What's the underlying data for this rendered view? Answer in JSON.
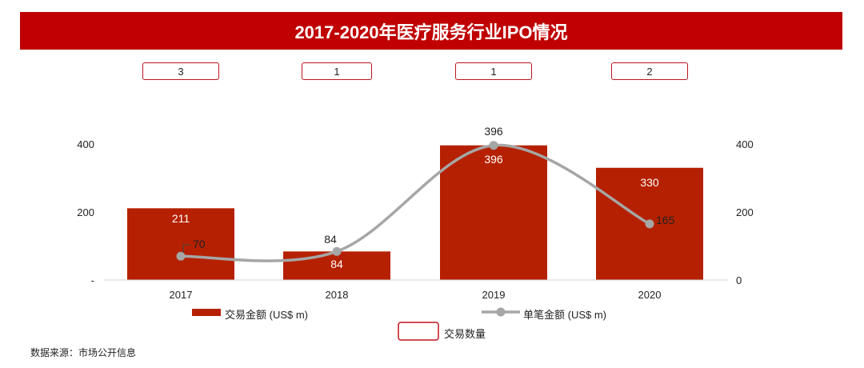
{
  "title": "2017-2020年医疗服务行业IPO情况",
  "source": "数据来源：市场公开信息",
  "colors": {
    "bar": "#b52100",
    "line": "#a6a6a6",
    "title_bg": "#c00000",
    "box_border": "#c0141c"
  },
  "chart_data": {
    "type": "bar",
    "categories": [
      "2017",
      "2018",
      "2019",
      "2020"
    ],
    "series": [
      {
        "name": "交易金额 (US$ m)",
        "type": "bar",
        "axis": "left",
        "values": [
          211,
          84,
          396,
          330
        ]
      },
      {
        "name": "单笔金额 (US$ m)",
        "type": "line",
        "axis": "right",
        "values": [
          70,
          84,
          396,
          165
        ],
        "smooth": true
      },
      {
        "name": "交易数量",
        "type": "box",
        "values": [
          3,
          1,
          1,
          2
        ]
      }
    ],
    "y_left": {
      "ticks": [
        0,
        200,
        400
      ],
      "tick_labels": [
        "-",
        "200",
        "400"
      ],
      "ylim": [
        0,
        430
      ]
    },
    "y_right": {
      "ticks": [
        0,
        200,
        400
      ],
      "tick_labels": [
        "0",
        "200",
        "400"
      ],
      "ylim": [
        0,
        430
      ]
    },
    "legend_position": "bottom"
  }
}
